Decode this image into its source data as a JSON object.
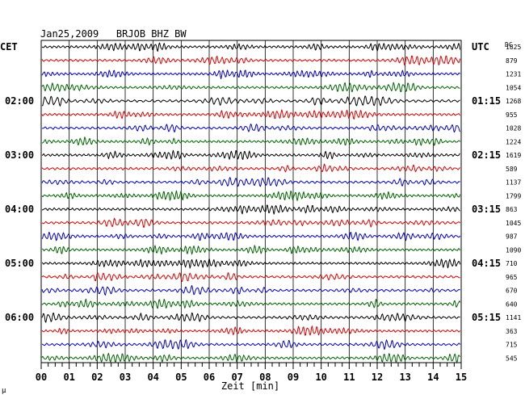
{
  "chart_data": {
    "type": "line",
    "title": "Jan25,2009   BRJOB BHZ BW",
    "left_label": "CET",
    "right_label": "UTC",
    "right_header": "DC",
    "xlabel": "Zeit [min]",
    "xlim": [
      0,
      15
    ],
    "x_ticks": [
      "00",
      "01",
      "02",
      "03",
      "04",
      "05",
      "06",
      "07",
      "08",
      "09",
      "10",
      "11",
      "12",
      "13",
      "14",
      "15"
    ],
    "trace_colors": [
      "#000000",
      "#e00000",
      "#0000d0",
      "#006400"
    ],
    "trace_count": 24,
    "cet_labels": [
      {
        "row": 4,
        "text": "02:00"
      },
      {
        "row": 8,
        "text": "03:00"
      },
      {
        "row": 12,
        "text": "04:00"
      },
      {
        "row": 16,
        "text": "05:00"
      },
      {
        "row": 20,
        "text": "06:00"
      }
    ],
    "utc_labels": [
      {
        "row": 0,
        "text": "UTC"
      },
      {
        "row": 4,
        "text": "01:15"
      },
      {
        "row": 8,
        "text": "02:15"
      },
      {
        "row": 12,
        "text": "03:15"
      },
      {
        "row": 16,
        "text": "04:15"
      },
      {
        "row": 20,
        "text": "05:15"
      }
    ],
    "dc_values": [
      "1825",
      "879",
      "1231",
      "1054",
      "1268",
      "955",
      "1028",
      "1224",
      "1619",
      "589",
      "1137",
      "1799",
      "863",
      "1045",
      "987",
      "1090",
      "710",
      "965",
      "670",
      "640",
      "1141",
      "363",
      "715",
      "545"
    ],
    "corner_mark": "µ"
  }
}
